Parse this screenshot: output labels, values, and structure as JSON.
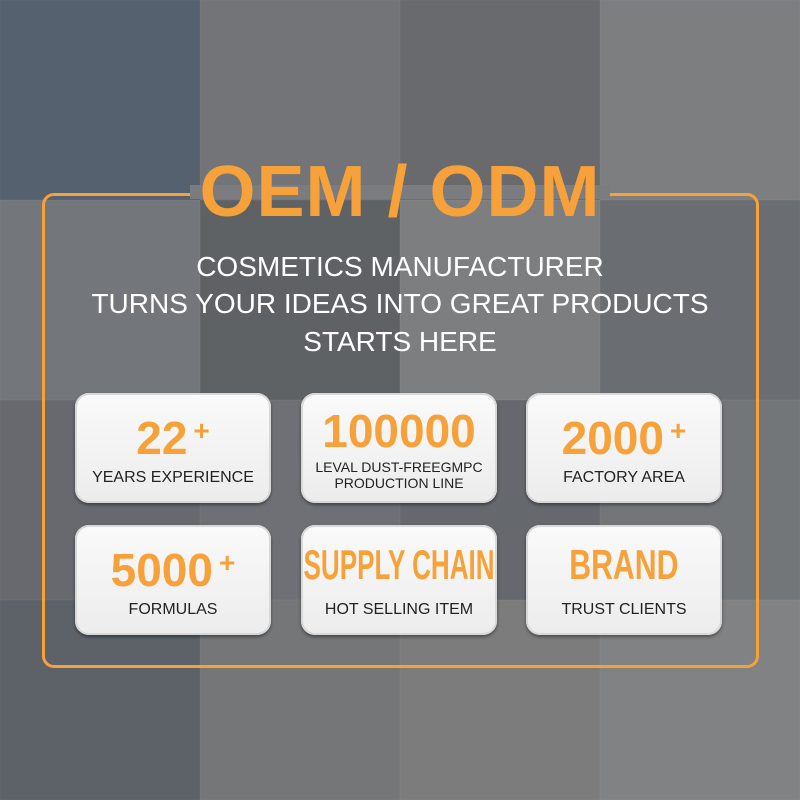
{
  "title": "OEM / ODM",
  "subtitle_lines": [
    "COSMETICS MANUFACTURER",
    "TURNS YOUR IDEAS INTO GREAT PRODUCTS",
    "STARTS HERE"
  ],
  "accent_color": "#f6a13a",
  "cards": [
    {
      "value": "22",
      "suffix": "+",
      "label": "YEARS EXPERIENCE"
    },
    {
      "value": "100000",
      "suffix": "",
      "label_lines": [
        "LEVAL DUST-FREEGMPC",
        "PRODUCTION LINE"
      ]
    },
    {
      "value": "2000",
      "suffix": "+",
      "label": "FACTORY AREA"
    },
    {
      "value": "5000",
      "suffix": "+",
      "label": "FORMULAS"
    },
    {
      "value": "SUPPLY CHAIN",
      "suffix": "",
      "label": "HOT SELLING ITEM"
    },
    {
      "value": "BRAND",
      "suffix": "",
      "label": "TRUST CLIENTS"
    }
  ]
}
